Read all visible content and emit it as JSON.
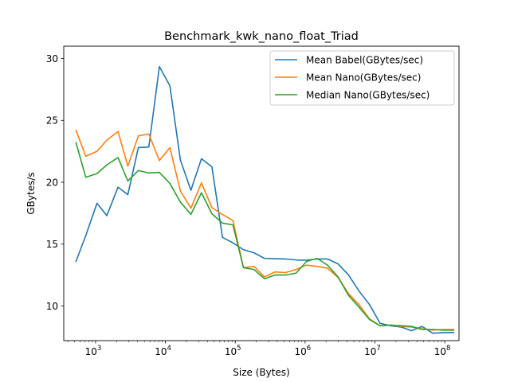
{
  "chart_data": {
    "type": "line",
    "title": "Benchmark_kwk_nano_float_Triad",
    "xlabel": "Size (Bytes)",
    "ylabel": "GBytes/s",
    "x_scale": "log",
    "xlim": [
      350,
      160000000
    ],
    "ylim": [
      7.2,
      31.0
    ],
    "x_ticks": [
      {
        "value": 1000,
        "base": "10",
        "exp": "3"
      },
      {
        "value": 10000,
        "base": "10",
        "exp": "4"
      },
      {
        "value": 100000,
        "base": "10",
        "exp": "5"
      },
      {
        "value": 1000000,
        "base": "10",
        "exp": "6"
      },
      {
        "value": 10000000,
        "base": "10",
        "exp": "7"
      },
      {
        "value": 100000000,
        "base": "10",
        "exp": "8"
      }
    ],
    "y_ticks": [
      {
        "value": 10,
        "label": "10"
      },
      {
        "value": 15,
        "label": "15"
      },
      {
        "value": 20,
        "label": "20"
      },
      {
        "value": 25,
        "label": "25"
      },
      {
        "value": 30,
        "label": "30"
      }
    ],
    "legend_position": "top-right",
    "grid": false,
    "x": [
      524,
      724,
      1048,
      1448,
      2096,
      2896,
      4096,
      5792,
      8192,
      11584,
      16384,
      23168,
      32768,
      46336,
      65536,
      92672,
      131072,
      185344,
      262144,
      370688,
      524288,
      741376,
      1048576,
      1482752,
      2097152,
      2965504,
      4194304,
      5931008,
      8388608,
      11862016,
      16777216,
      23724032,
      33554432,
      47448064,
      67108864,
      94896128,
      134217728
    ],
    "series": [
      {
        "name": "Mean Babel(GBytes/sec)",
        "color": "#1f77b4",
        "values": [
          13.6,
          15.7,
          18.3,
          17.3,
          19.6,
          19.0,
          22.8,
          22.85,
          29.35,
          27.8,
          21.8,
          19.35,
          21.9,
          21.25,
          15.55,
          15.1,
          14.55,
          14.3,
          13.85,
          13.82,
          13.8,
          13.72,
          13.7,
          13.8,
          13.8,
          13.4,
          12.5,
          11.2,
          10.1,
          8.6,
          8.4,
          8.3,
          8.0,
          8.35,
          7.8,
          7.85,
          7.85
        ]
      },
      {
        "name": "Mean Nano(GBytes/sec)",
        "color": "#ff7f0e",
        "values": [
          24.2,
          22.1,
          22.5,
          23.4,
          24.1,
          21.3,
          23.75,
          23.9,
          21.75,
          22.8,
          19.3,
          17.9,
          19.95,
          17.95,
          17.4,
          16.9,
          13.1,
          13.2,
          12.35,
          12.75,
          12.7,
          12.95,
          13.3,
          13.2,
          13.05,
          12.3,
          11.0,
          10.1,
          8.95,
          8.4,
          8.45,
          8.35,
          8.3,
          8.15,
          8.05,
          8.1,
          8.1
        ]
      },
      {
        "name": "Median Nano(GBytes/sec)",
        "color": "#2ca02c",
        "values": [
          23.2,
          20.4,
          20.7,
          21.4,
          22.0,
          20.1,
          20.95,
          20.75,
          20.8,
          19.9,
          18.4,
          17.4,
          19.15,
          17.45,
          16.7,
          16.55,
          13.1,
          12.95,
          12.2,
          12.5,
          12.5,
          12.65,
          13.6,
          13.85,
          13.3,
          12.35,
          10.85,
          9.9,
          8.9,
          8.4,
          8.45,
          8.4,
          8.35,
          8.1,
          8.1,
          8.05,
          8.05
        ]
      }
    ]
  }
}
